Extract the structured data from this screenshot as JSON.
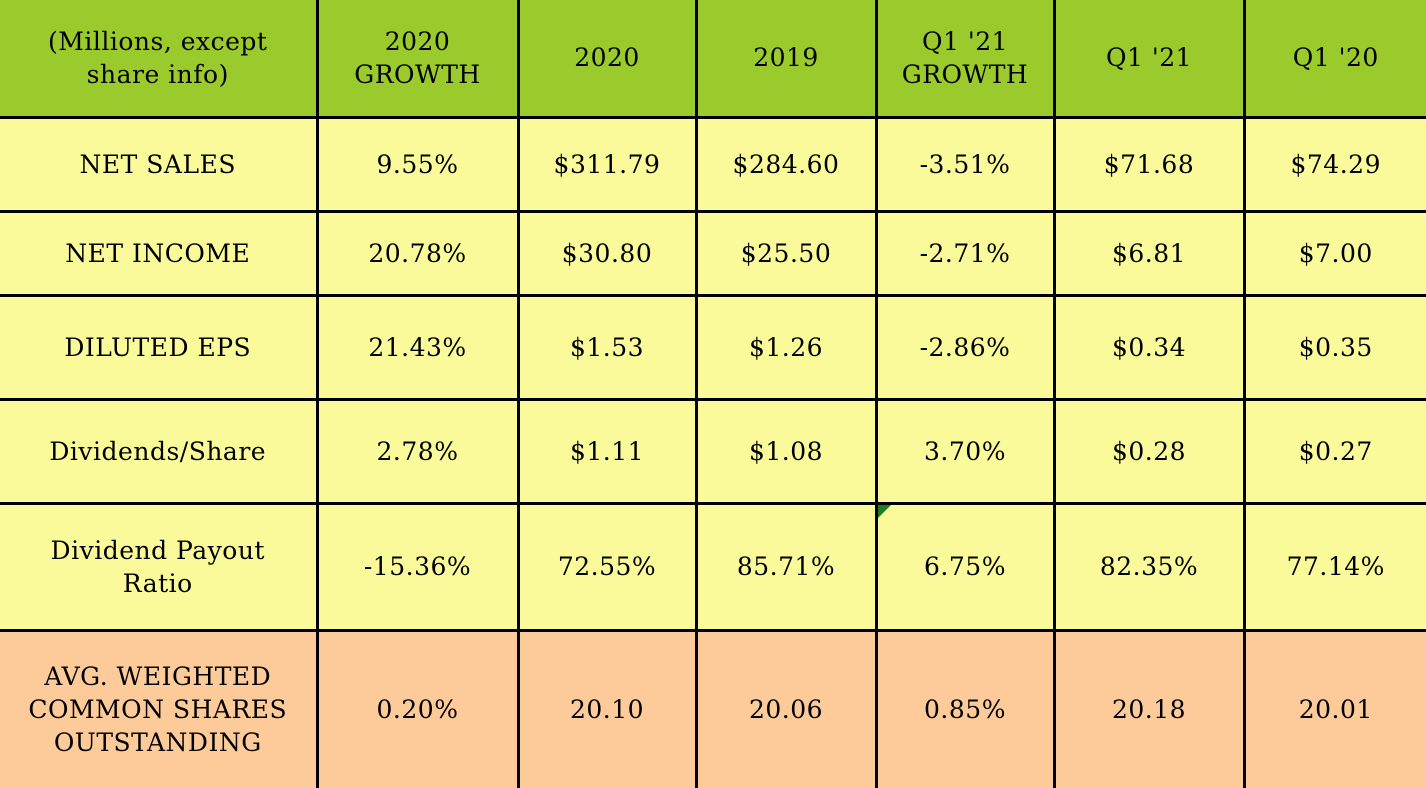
{
  "chart_data": {
    "type": "table",
    "columns": [
      "(Millions, except\nshare info)",
      "2020\nGROWTH",
      "2020",
      "2019",
      "Q1 '21\nGROWTH",
      "Q1 '21",
      "Q1 '20"
    ],
    "rows": [
      {
        "label": "NET SALES",
        "band": "yellow",
        "values": [
          "9.55%",
          "$311.79",
          "$284.60",
          "-3.51%",
          "$71.68",
          "$74.29"
        ]
      },
      {
        "label": "NET INCOME",
        "band": "yellow",
        "values": [
          "20.78%",
          "$30.80",
          "$25.50",
          "-2.71%",
          "$6.81",
          "$7.00"
        ]
      },
      {
        "label": "DILUTED EPS",
        "band": "yellow",
        "values": [
          "21.43%",
          "$1.53",
          "$1.26",
          "-2.86%",
          "$0.34",
          "$0.35"
        ]
      },
      {
        "label": "Dividends/Share",
        "band": "yellow",
        "values": [
          "2.78%",
          "$1.11",
          "$1.08",
          "3.70%",
          "$0.28",
          "$0.27"
        ]
      },
      {
        "label": "Dividend Payout\nRatio",
        "band": "yellow",
        "flag_value_index": 3,
        "values": [
          "-15.36%",
          "72.55%",
          "85.71%",
          "6.75%",
          "82.35%",
          "77.14%"
        ]
      },
      {
        "label": "AVG. WEIGHTED\nCOMMON SHARES\nOUTSTANDING",
        "band": "orange",
        "values": [
          "0.20%",
          "20.10",
          "20.06",
          "0.85%",
          "20.18",
          "20.01"
        ]
      }
    ],
    "layout": {
      "legend": "none",
      "grid": "on"
    },
    "colors": {
      "header_bg": "#9ACA2B",
      "row_bg": "#FBFA9A",
      "highlight_row_bg": "#FDCB99",
      "grid": "#000000",
      "text": "#000000",
      "flag_triangle": "#1E7C25"
    }
  }
}
